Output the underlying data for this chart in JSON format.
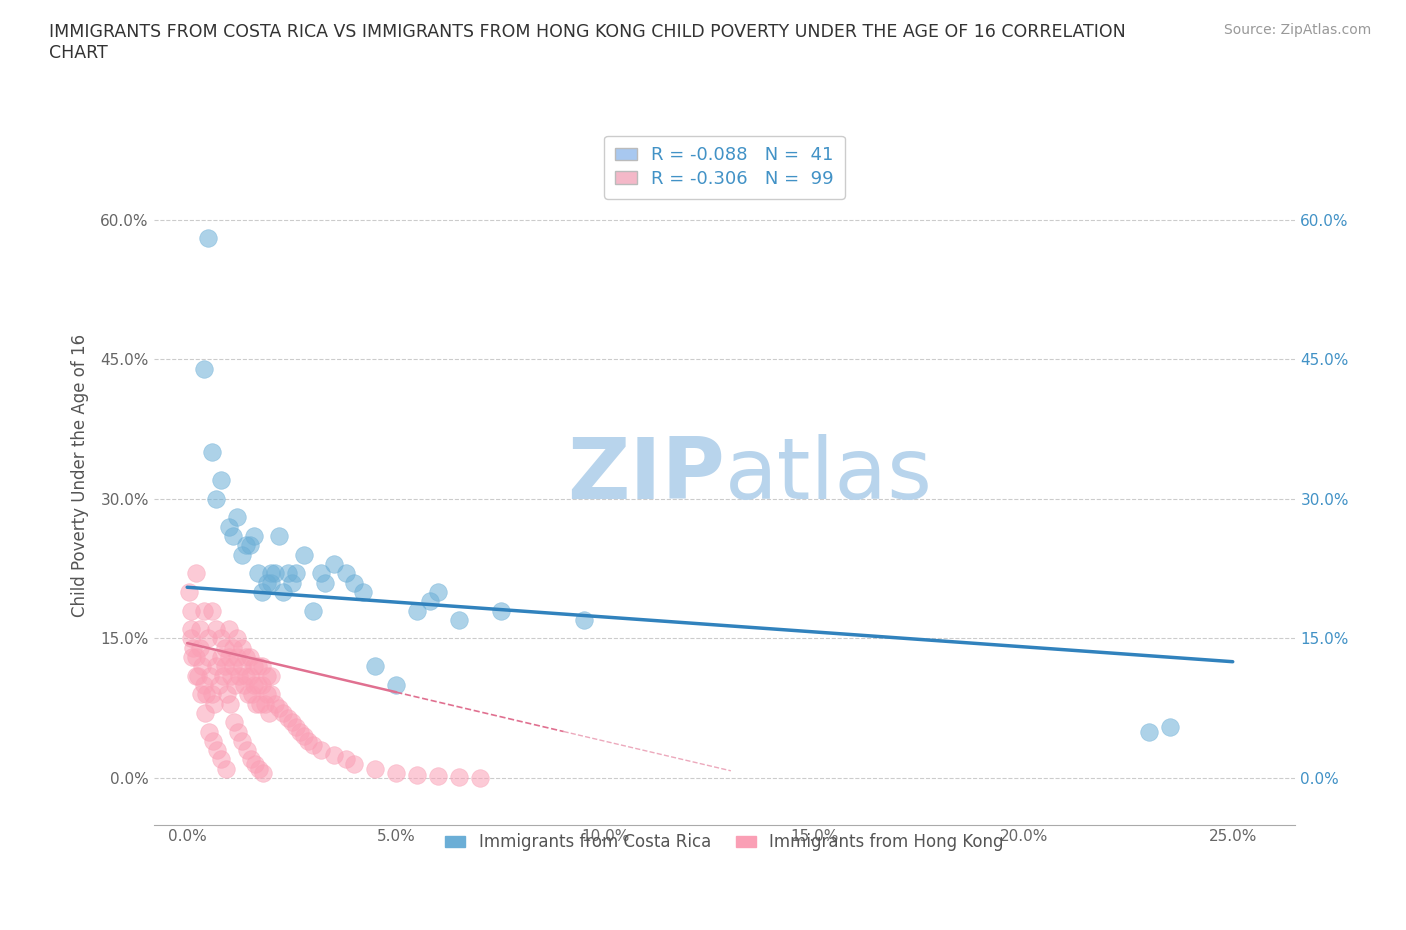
{
  "title": "IMMIGRANTS FROM COSTA RICA VS IMMIGRANTS FROM HONG KONG CHILD POVERTY UNDER THE AGE OF 16 CORRELATION\nCHART",
  "source": "Source: ZipAtlas.com",
  "xlabel_vals": [
    0.0,
    5.0,
    10.0,
    15.0,
    20.0,
    25.0
  ],
  "ylabel": "Child Poverty Under the Age of 16",
  "ylabel_vals": [
    0.0,
    15.0,
    30.0,
    45.0,
    60.0
  ],
  "xlim": [
    -0.8,
    26.5
  ],
  "ylim": [
    -5.0,
    70.0
  ],
  "series1_name": "Immigrants from Costa Rica",
  "series1_color": "#6baed6",
  "series2_name": "Immigrants from Hong Kong",
  "series2_color": "#fa9fb5",
  "trendline1_color": "#3182bd",
  "trendline2_color": "#e07090",
  "trendline1_start_x": 0.0,
  "trendline1_start_y": 20.5,
  "trendline1_end_x": 25.0,
  "trendline1_end_y": 12.5,
  "trendline2_start_x": 0.0,
  "trendline2_start_y": 14.5,
  "trendline2_end_x": 9.0,
  "trendline2_end_y": 5.0,
  "watermark_zip": "ZIP",
  "watermark_atlas": "atlas",
  "watermark_color_zip": "#b8d4ec",
  "watermark_color_atlas": "#b8d4ec",
  "legend_entries": [
    {
      "label": "R = -0.088   N =  41",
      "color": "#a8c8f0"
    },
    {
      "label": "R = -0.306   N =  99",
      "color": "#f4b8c8"
    }
  ],
  "costa_rica_x": [
    0.5,
    0.6,
    0.8,
    1.0,
    1.1,
    1.2,
    1.3,
    1.5,
    1.6,
    1.8,
    2.0,
    2.0,
    2.1,
    2.2,
    2.4,
    2.5,
    2.8,
    3.0,
    3.2,
    3.5,
    3.8,
    4.0,
    4.5,
    5.0,
    5.5,
    6.0,
    0.4,
    0.7,
    1.4,
    1.7,
    1.9,
    2.3,
    2.6,
    3.3,
    4.2,
    5.8,
    6.5,
    7.5,
    9.5,
    23.0,
    23.5
  ],
  "costa_rica_y": [
    58.0,
    35.0,
    32.0,
    27.0,
    26.0,
    28.0,
    24.0,
    25.0,
    26.0,
    20.0,
    22.0,
    21.0,
    22.0,
    26.0,
    22.0,
    21.0,
    24.0,
    18.0,
    22.0,
    23.0,
    22.0,
    21.0,
    12.0,
    10.0,
    18.0,
    20.0,
    44.0,
    30.0,
    25.0,
    22.0,
    21.0,
    20.0,
    22.0,
    21.0,
    20.0,
    19.0,
    17.0,
    18.0,
    17.0,
    5.0,
    5.5
  ],
  "hong_kong_x": [
    0.05,
    0.1,
    0.1,
    0.15,
    0.2,
    0.2,
    0.25,
    0.3,
    0.3,
    0.35,
    0.4,
    0.4,
    0.45,
    0.5,
    0.5,
    0.55,
    0.6,
    0.6,
    0.65,
    0.7,
    0.7,
    0.75,
    0.8,
    0.8,
    0.85,
    0.9,
    0.9,
    0.95,
    1.0,
    1.0,
    1.05,
    1.1,
    1.1,
    1.15,
    1.2,
    1.2,
    1.25,
    1.3,
    1.3,
    1.35,
    1.4,
    1.4,
    1.45,
    1.5,
    1.5,
    1.55,
    1.6,
    1.6,
    1.65,
    1.7,
    1.7,
    1.75,
    1.8,
    1.8,
    1.85,
    1.9,
    1.9,
    1.95,
    2.0,
    2.0,
    2.1,
    2.2,
    2.3,
    2.4,
    2.5,
    2.6,
    2.7,
    2.8,
    2.9,
    3.0,
    3.2,
    3.5,
    3.8,
    4.0,
    4.5,
    5.0,
    5.5,
    6.0,
    6.5,
    7.0,
    0.08,
    0.12,
    0.22,
    0.32,
    0.42,
    0.52,
    0.62,
    0.72,
    0.82,
    0.92,
    1.02,
    1.12,
    1.22,
    1.32,
    1.42,
    1.52,
    1.62,
    1.72,
    1.82
  ],
  "hong_kong_y": [
    20.0,
    18.0,
    16.0,
    14.0,
    22.0,
    13.0,
    11.0,
    16.0,
    14.0,
    12.0,
    18.0,
    10.0,
    9.0,
    15.0,
    13.0,
    11.0,
    18.0,
    9.0,
    8.0,
    16.0,
    12.0,
    10.0,
    15.0,
    13.0,
    11.0,
    14.0,
    12.0,
    9.0,
    16.0,
    13.0,
    11.0,
    14.0,
    12.0,
    10.0,
    15.0,
    13.0,
    11.0,
    14.0,
    12.0,
    10.0,
    13.0,
    11.0,
    9.0,
    13.0,
    11.0,
    9.0,
    12.0,
    10.0,
    8.0,
    12.0,
    10.0,
    8.0,
    12.0,
    10.0,
    8.0,
    11.0,
    9.0,
    7.0,
    11.0,
    9.0,
    8.0,
    7.5,
    7.0,
    6.5,
    6.0,
    5.5,
    5.0,
    4.5,
    4.0,
    3.5,
    3.0,
    2.5,
    2.0,
    1.5,
    1.0,
    0.5,
    0.3,
    0.2,
    0.1,
    0.05,
    15.0,
    13.0,
    11.0,
    9.0,
    7.0,
    5.0,
    4.0,
    3.0,
    2.0,
    1.0,
    8.0,
    6.0,
    5.0,
    4.0,
    3.0,
    2.0,
    1.5,
    1.0,
    0.5
  ]
}
